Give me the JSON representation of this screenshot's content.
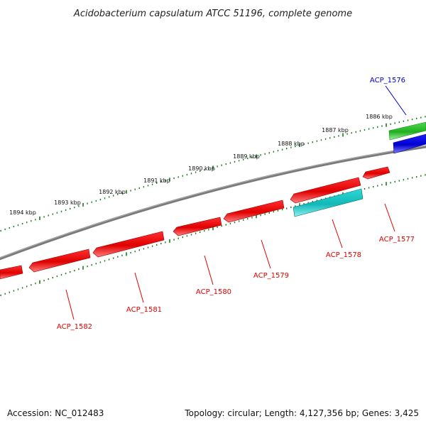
{
  "title": "Acidobacterium capsulatum ATCC 51196, complete genome",
  "accession": "Accession: NC_012483",
  "summary": "Topology: circular; Length: 4,127,356 bp; Genes: 3,425",
  "colors": {
    "backbone": "#808080",
    "ticks": "#1a7a1a",
    "forward_gene": "#e00000",
    "cyan_gene": "#20c8c8",
    "green_gene": "#30c030",
    "blue_gene": "#0000e0",
    "label_red": "#dd0000",
    "label_blue": "#0000cc"
  },
  "kbp_labels": [
    "1886 kbp",
    "1887 kbp",
    "1888 kbp",
    "1889 kbp",
    "1890 kbp",
    "1891 kbp",
    "1892 kbp",
    "1893 kbp",
    "1894 kbp"
  ],
  "genes": [
    {
      "name": "ACP_1576",
      "color": "blue"
    },
    {
      "name": "ACP_1577",
      "color": "red"
    },
    {
      "name": "ACP_1578",
      "color": "red"
    },
    {
      "name": "ACP_1579",
      "color": "red"
    },
    {
      "name": "ACP_1580",
      "color": "red"
    },
    {
      "name": "ACP_1581",
      "color": "red"
    },
    {
      "name": "ACP_1582",
      "color": "red"
    }
  ]
}
